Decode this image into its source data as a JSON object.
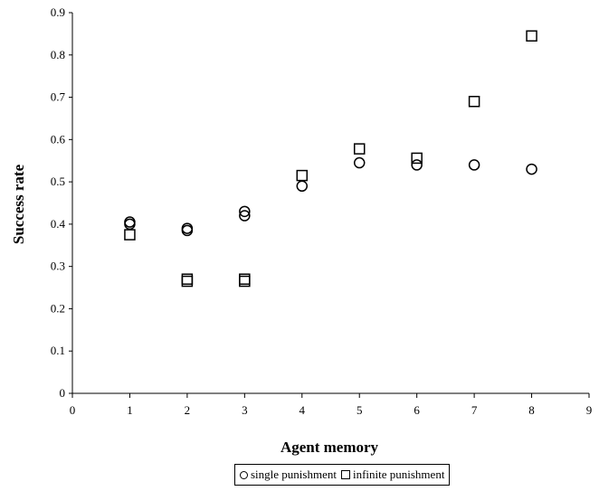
{
  "chart_data": {
    "type": "scatter",
    "title": "",
    "xlabel": "Agent memory",
    "ylabel": "Success rate",
    "xlim": [
      0,
      9
    ],
    "ylim": [
      0,
      0.9
    ],
    "xticks": [
      0,
      1,
      2,
      3,
      4,
      5,
      6,
      7,
      8,
      9
    ],
    "yticks": [
      0,
      0.1,
      0.2,
      0.3,
      0.4,
      0.5,
      0.6,
      0.7,
      0.8,
      0.9
    ],
    "xtick_labels": [
      "0",
      "1",
      "2",
      "3",
      "4",
      "5",
      "6",
      "7",
      "8",
      "9"
    ],
    "ytick_labels": [
      "0",
      "0.1",
      "0.2",
      "0.3",
      "0.4",
      "0.5",
      "0.6",
      "0.7",
      "0.8",
      "0.9"
    ],
    "grid": false,
    "legend_position": "bottom",
    "series": [
      {
        "name": "single punishment",
        "marker": "circle",
        "color": "#000000",
        "points": [
          [
            1,
            0.4
          ],
          [
            1,
            0.405
          ],
          [
            2,
            0.385
          ],
          [
            2,
            0.39
          ],
          [
            3,
            0.42
          ],
          [
            3,
            0.43
          ],
          [
            4,
            0.49
          ],
          [
            5,
            0.545
          ],
          [
            6,
            0.54
          ],
          [
            7,
            0.54
          ],
          [
            8,
            0.53
          ]
        ]
      },
      {
        "name": "infinite punishment",
        "marker": "square",
        "color": "#000000",
        "points": [
          [
            1,
            0.375
          ],
          [
            2,
            0.265
          ],
          [
            2,
            0.27
          ],
          [
            3,
            0.265
          ],
          [
            3,
            0.27
          ],
          [
            4,
            0.515
          ],
          [
            5,
            0.578
          ],
          [
            6,
            0.556
          ],
          [
            7,
            0.69
          ],
          [
            8,
            0.845
          ]
        ]
      }
    ]
  }
}
